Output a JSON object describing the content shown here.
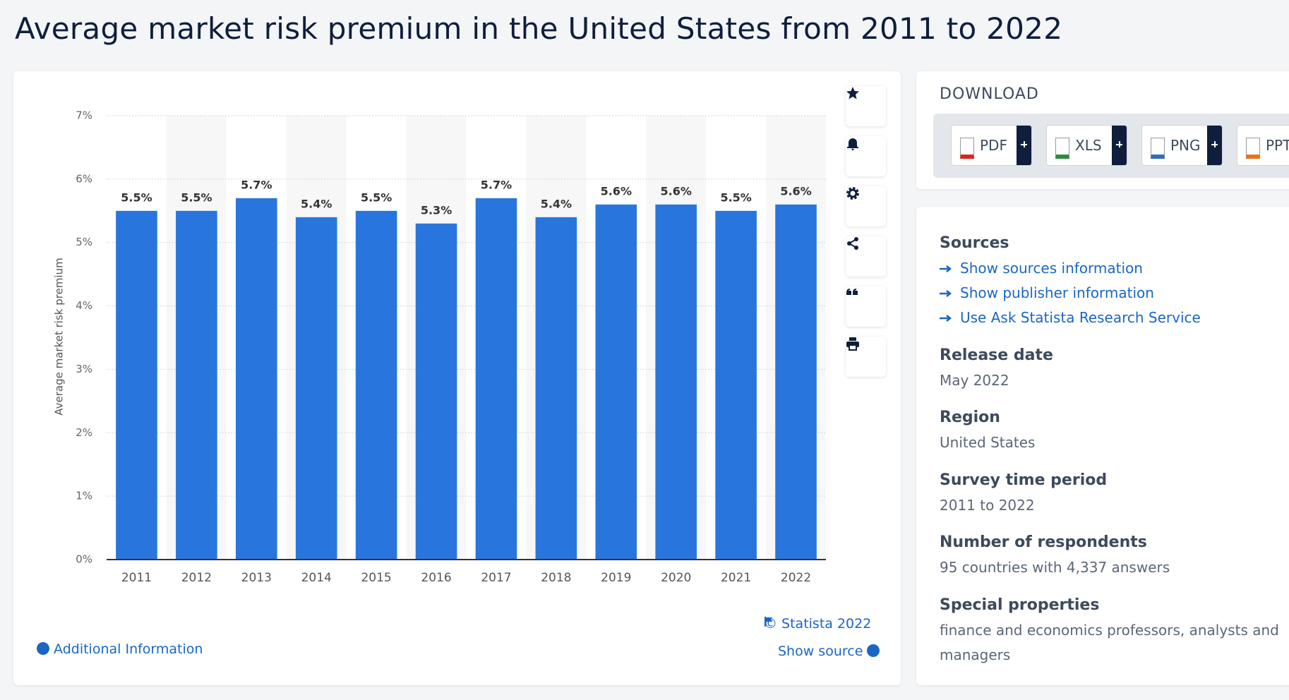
{
  "title": "Average market risk premium in the United States from 2011 to 2022",
  "chart_data": {
    "type": "bar",
    "y_label": "Average market risk premium",
    "categories": [
      "2011",
      "2012",
      "2013",
      "2014",
      "2015",
      "2016",
      "2017",
      "2018",
      "2019",
      "2020",
      "2021",
      "2022"
    ],
    "values": [
      5.5,
      5.5,
      5.7,
      5.4,
      5.5,
      5.3,
      5.7,
      5.4,
      5.6,
      5.6,
      5.5,
      5.6
    ],
    "value_labels": [
      "5.5%",
      "5.5%",
      "5.7%",
      "5.4%",
      "5.5%",
      "5.3%",
      "5.7%",
      "5.4%",
      "5.6%",
      "5.6%",
      "5.5%",
      "5.6%"
    ],
    "color": "#2876dd",
    "ylim": [
      0,
      7
    ],
    "yticks": [
      {
        "value": 0,
        "label": "0%"
      },
      {
        "value": 1,
        "label": "1%"
      },
      {
        "value": 2,
        "label": "2%"
      },
      {
        "value": 3,
        "label": "3%"
      },
      {
        "value": 4,
        "label": "4%"
      },
      {
        "value": 5,
        "label": "5%"
      },
      {
        "value": 6,
        "label": "6%"
      },
      {
        "value": 7,
        "label": "7%"
      }
    ],
    "grid": true
  },
  "footer": {
    "copyright": "© Statista 2022",
    "show_source": "Show source",
    "additional_info": "Additional Information"
  },
  "download": {
    "heading": "DOWNLOAD",
    "formats": [
      "PDF",
      "XLS",
      "PNG",
      "PPT"
    ]
  },
  "details": {
    "sources": {
      "heading": "Sources",
      "links": [
        "Show sources information",
        "Show publisher information",
        "Use Ask Statista Research Service"
      ]
    },
    "items": [
      {
        "heading": "Release date",
        "text": "May 2022"
      },
      {
        "heading": "Region",
        "text": "United States"
      },
      {
        "heading": "Survey time period",
        "text": "2011 to 2022"
      },
      {
        "heading": "Number of respondents",
        "text": "95 countries with 4,337 answers"
      },
      {
        "heading": "Special properties",
        "text": "finance and economics professors, analysts and managers"
      }
    ]
  }
}
